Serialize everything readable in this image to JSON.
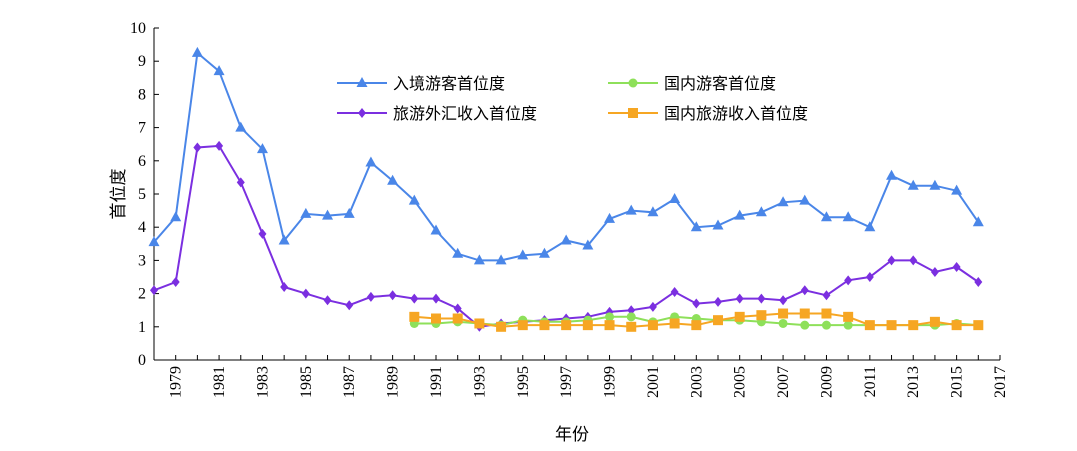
{
  "chart_data": {
    "type": "line",
    "xlabel": "年份",
    "ylabel": "首位度",
    "xlim": [
      1978,
      2017
    ],
    "ylim": [
      0,
      10
    ],
    "y_ticks": [
      "0",
      "1",
      "2",
      "3",
      "4",
      "5",
      "6",
      "7",
      "8",
      "9",
      "10"
    ],
    "x_ticks": [
      "1979",
      "1981",
      "1983",
      "1985",
      "1987",
      "1989",
      "1991",
      "1993",
      "1995",
      "1997",
      "1999",
      "2001",
      "2003",
      "2005",
      "2007",
      "2009",
      "2011",
      "2013",
      "2015",
      "2017"
    ],
    "grid": false,
    "legend_position": "top",
    "series": [
      {
        "name": "入境游客首位度",
        "color": "#4a86e8",
        "marker": "triangle",
        "x": [
          1978,
          1979,
          1980,
          1981,
          1982,
          1983,
          1984,
          1985,
          1986,
          1987,
          1988,
          1989,
          1990,
          1991,
          1992,
          1993,
          1994,
          1995,
          1996,
          1997,
          1998,
          1999,
          2000,
          2001,
          2002,
          2003,
          2004,
          2005,
          2006,
          2007,
          2008,
          2009,
          2010,
          2011,
          2012,
          2013,
          2014,
          2015,
          2016
        ],
        "y": [
          3.55,
          4.3,
          9.25,
          8.7,
          7.0,
          6.35,
          3.6,
          4.4,
          4.35,
          4.4,
          5.95,
          5.4,
          4.8,
          3.9,
          3.2,
          3.0,
          3.0,
          3.15,
          3.2,
          3.6,
          3.45,
          4.25,
          4.5,
          4.45,
          4.85,
          4.0,
          4.05,
          4.35,
          4.45,
          4.75,
          4.8,
          4.3,
          4.3,
          4.0,
          5.55,
          5.25,
          5.25,
          5.1,
          4.15
        ]
      },
      {
        "name": "旅游外汇收入首位度",
        "color": "#7b2fe0",
        "marker": "diamond",
        "x": [
          1978,
          1979,
          1980,
          1981,
          1982,
          1983,
          1984,
          1985,
          1986,
          1987,
          1988,
          1989,
          1990,
          1991,
          1992,
          1993,
          1994,
          1995,
          1996,
          1997,
          1998,
          1999,
          2000,
          2001,
          2002,
          2003,
          2004,
          2005,
          2006,
          2007,
          2008,
          2009,
          2010,
          2011,
          2012,
          2013,
          2014,
          2015,
          2016
        ],
        "y": [
          2.1,
          2.35,
          6.4,
          6.45,
          5.35,
          3.8,
          2.2,
          2.0,
          1.8,
          1.65,
          1.9,
          1.95,
          1.85,
          1.85,
          1.55,
          1.0,
          1.1,
          1.15,
          1.2,
          1.25,
          1.3,
          1.45,
          1.5,
          1.6,
          2.05,
          1.7,
          1.75,
          1.85,
          1.85,
          1.8,
          2.1,
          1.95,
          2.4,
          2.5,
          3.0,
          3.0,
          2.65,
          2.8,
          2.35
        ]
      },
      {
        "name": "国内游客首位度",
        "color": "#8ee05a",
        "marker": "circle",
        "x": [
          1990,
          1991,
          1992,
          1993,
          1994,
          1995,
          1996,
          1997,
          1998,
          1999,
          2000,
          2001,
          2002,
          2003,
          2004,
          2005,
          2006,
          2007,
          2008,
          2009,
          2010,
          2011,
          2012,
          2013,
          2014,
          2015,
          2016
        ],
        "y": [
          1.1,
          1.1,
          1.15,
          1.1,
          1.05,
          1.2,
          1.15,
          1.15,
          1.2,
          1.3,
          1.3,
          1.15,
          1.3,
          1.25,
          1.2,
          1.2,
          1.15,
          1.1,
          1.05,
          1.05,
          1.05,
          1.05,
          1.05,
          1.05,
          1.05,
          1.1,
          1.05
        ]
      },
      {
        "name": "国内旅游收入首位度",
        "color": "#f6a623",
        "marker": "square",
        "x": [
          1990,
          1991,
          1992,
          1993,
          1994,
          1995,
          1996,
          1997,
          1998,
          1999,
          2000,
          2001,
          2002,
          2003,
          2004,
          2005,
          2006,
          2007,
          2008,
          2009,
          2010,
          2011,
          2012,
          2013,
          2014,
          2015,
          2016
        ],
        "y": [
          1.3,
          1.25,
          1.25,
          1.1,
          1.0,
          1.05,
          1.05,
          1.05,
          1.05,
          1.05,
          1.0,
          1.05,
          1.1,
          1.05,
          1.2,
          1.3,
          1.35,
          1.4,
          1.4,
          1.4,
          1.3,
          1.05,
          1.05,
          1.05,
          1.15,
          1.05,
          1.05
        ]
      }
    ]
  }
}
